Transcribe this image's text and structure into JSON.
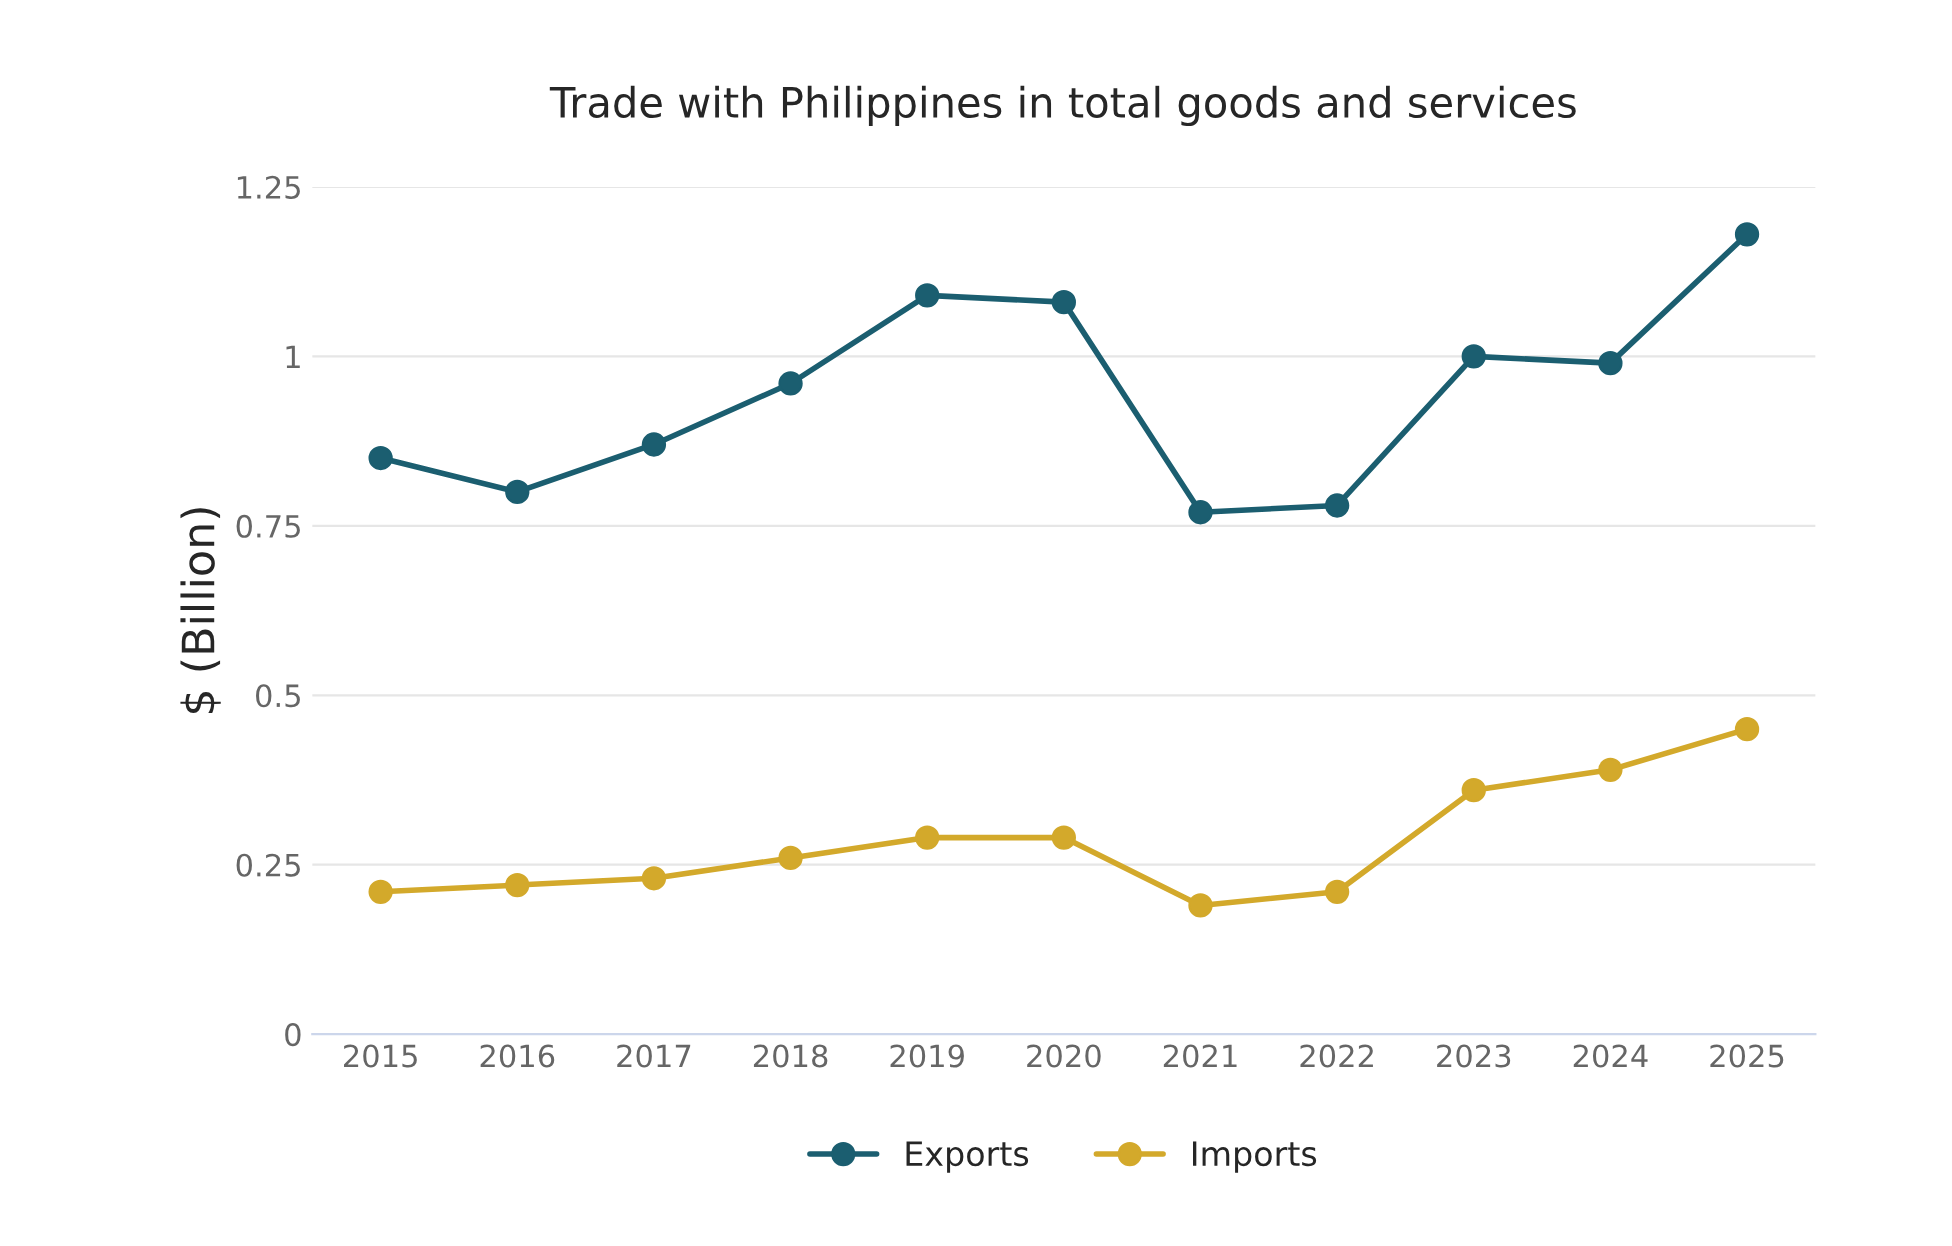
{
  "chart_data": {
    "type": "line",
    "title": "Trade with Philippines in total goods and services",
    "ylabel": "$ (Billion)",
    "categories": [
      "2015",
      "2016",
      "2017",
      "2018",
      "2019",
      "2020",
      "2021",
      "2022",
      "2023",
      "2024",
      "2025"
    ],
    "series": [
      {
        "name": "Exports",
        "color": "#1b5e70",
        "values": [
          0.85,
          0.8,
          0.87,
          0.96,
          1.09,
          1.08,
          0.77,
          0.78,
          1.0,
          0.99,
          1.18
        ]
      },
      {
        "name": "Imports",
        "color": "#d3a92b",
        "values": [
          0.21,
          0.22,
          0.23,
          0.26,
          0.29,
          0.29,
          0.19,
          0.21,
          0.36,
          0.39,
          0.45
        ]
      }
    ],
    "ylim": [
      0,
      1.25
    ],
    "yticks": [
      0,
      0.25,
      0.5,
      0.75,
      1,
      1.25
    ],
    "grid": "y",
    "legend": "bottom",
    "marker": "circle",
    "line_style": "solid"
  }
}
